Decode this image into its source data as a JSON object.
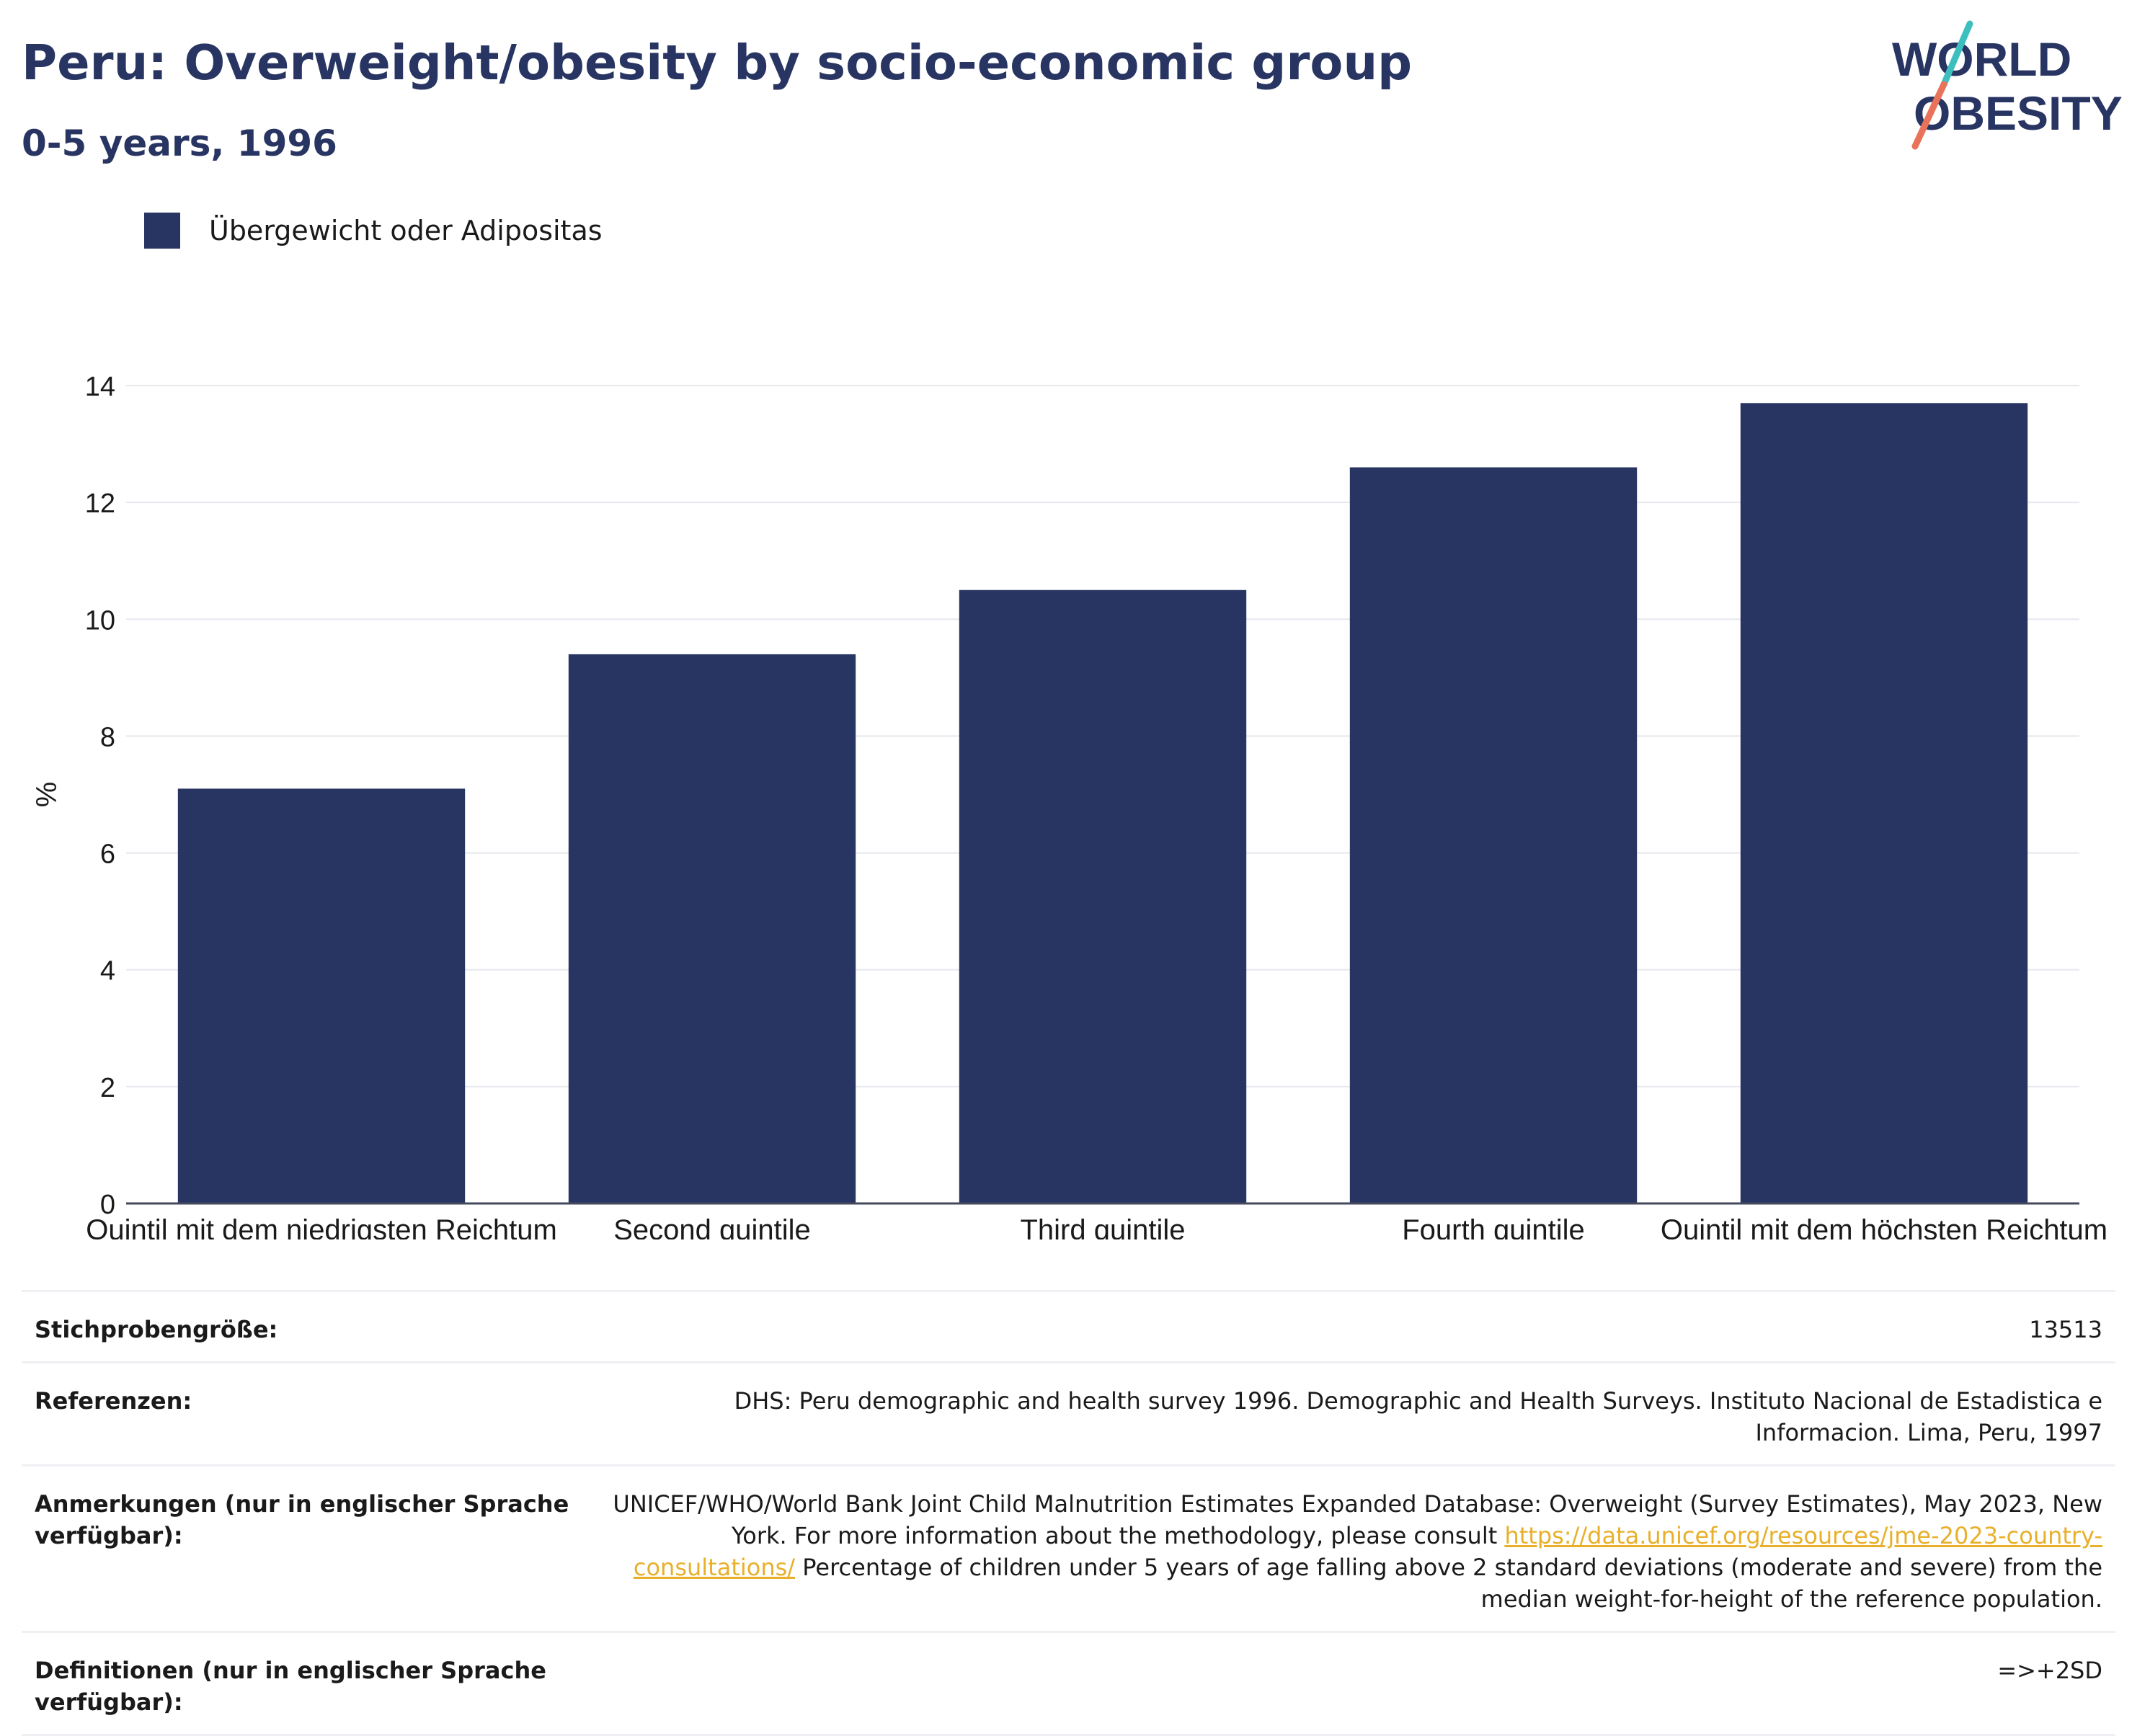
{
  "header": {
    "title": "Peru: Overweight/obesity by socio-economic group",
    "subtitle": "0-5 years, 1996"
  },
  "logo": {
    "line1": "WORLD",
    "line2": "OBESITY",
    "accent_colors": [
      "#3ebfbf",
      "#e8735a"
    ]
  },
  "colors": {
    "bar": "#283562",
    "text": "#1a1a1a",
    "link": "#e8b02a"
  },
  "chart_data": {
    "type": "bar",
    "categories": [
      "Quintil mit dem niedrigsten Reichtum",
      "Second quintile",
      "Third quintile",
      "Fourth quintile",
      "Quintil mit dem höchsten Reichtum"
    ],
    "series": [
      {
        "name": "Übergewicht oder Adipositas",
        "values": [
          7.1,
          9.4,
          10.5,
          12.6,
          13.7
        ]
      }
    ],
    "ylabel": "%",
    "xlabel": "",
    "ylim": [
      0,
      14
    ],
    "yticks": [
      0,
      2,
      4,
      6,
      8,
      10,
      12,
      14
    ],
    "grid": true,
    "legend": "top-left"
  },
  "meta": {
    "sample_size": {
      "label": "Stichprobengröße:",
      "value": "13513"
    },
    "references": {
      "label": "Referenzen:",
      "value": "DHS: Peru demographic and health survey 1996. Demographic and Health Surveys. Instituto Nacional de Estadistica e Informacion. Lima, Peru, 1997"
    },
    "notes": {
      "label": "Anmerkungen (nur in englischer Sprache verfügbar):",
      "text_before": "UNICEF/WHO/World Bank Joint Child Malnutrition Estimates Expanded Database: Overweight (Survey Estimates), May 2023, New York. For more information about the methodology, please consult ",
      "link": "https://data.unicef.org/resources/jme-2023-country-consultations/",
      "text_after": " Percentage of children under 5 years of age falling above 2 standard deviations (moderate and severe) from the median weight-for-height of the reference population."
    },
    "definitions": {
      "label": "Definitionen (nur in englischer Sprache verfügbar):",
      "value": "=>+2SD"
    }
  }
}
